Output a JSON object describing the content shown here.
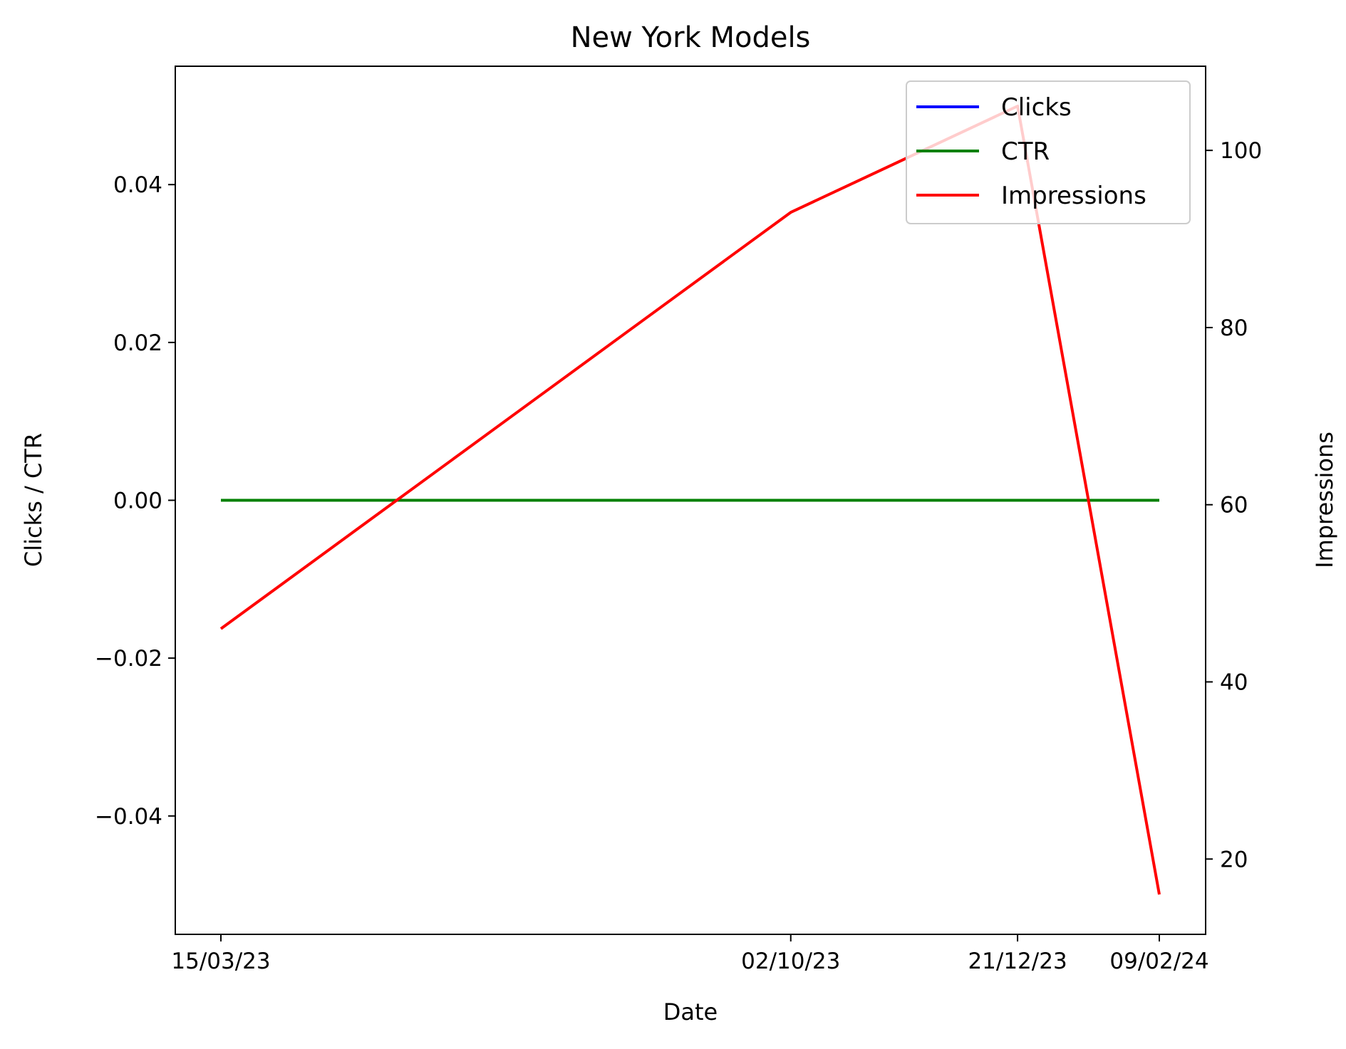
{
  "chart_data": {
    "type": "line",
    "title": "New York Models",
    "xlabel": "Date",
    "ylabel_left": "Clicks / CTR",
    "ylabel_right": "Impressions",
    "x": [
      "15/03/23",
      "02/10/23",
      "21/12/23",
      "09/02/24"
    ],
    "x_ticks": [
      "15/03/23",
      "02/10/23",
      "21/12/23",
      "09/02/24"
    ],
    "ylim_left": [
      -0.055,
      0.055
    ],
    "ylim_right": [
      11.5,
      109.5
    ],
    "y_ticks_left": [
      -0.04,
      -0.02,
      0.0,
      0.02,
      0.04
    ],
    "y_tick_labels_left": [
      "−0.04",
      "−0.02",
      "0.00",
      "0.02",
      "0.04"
    ],
    "y_ticks_right": [
      20,
      40,
      60,
      80,
      100
    ],
    "y_tick_labels_right": [
      "20",
      "40",
      "60",
      "80",
      "100"
    ],
    "grid": false,
    "legend_position": "top-right",
    "series": [
      {
        "name": "Clicks",
        "axis": "left",
        "color": "#0000ff",
        "values": [
          0,
          0,
          0,
          0
        ]
      },
      {
        "name": "CTR",
        "axis": "left",
        "color": "#008000",
        "values": [
          0,
          0,
          0,
          0
        ]
      },
      {
        "name": "Impressions",
        "axis": "right",
        "color": "#ff0000",
        "values": [
          46,
          93,
          105,
          16
        ]
      }
    ]
  }
}
